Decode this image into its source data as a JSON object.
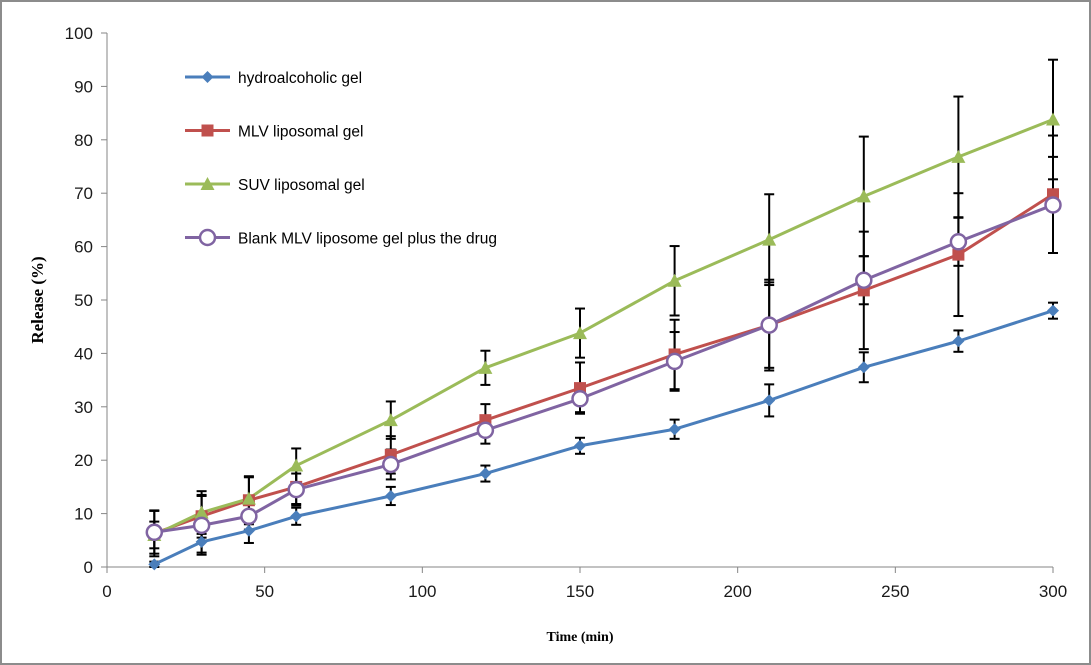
{
  "chart_data": {
    "type": "line",
    "title": "",
    "xlabel": "Time (min)",
    "ylabel": "Release (%)",
    "xlim": [
      0,
      300
    ],
    "ylim": [
      0,
      100
    ],
    "x_ticks": [
      0,
      50,
      100,
      150,
      200,
      250,
      300
    ],
    "y_ticks": [
      0,
      10,
      20,
      30,
      40,
      50,
      60,
      70,
      80,
      90,
      100
    ],
    "grid": false,
    "legend_position": "top-left",
    "x": [
      15,
      30,
      45,
      60,
      90,
      120,
      150,
      180,
      210,
      240,
      270,
      300
    ],
    "series": [
      {
        "name": "hydroalcoholic gel",
        "color": "#4a7ebb",
        "marker": "diamond",
        "values": [
          0.5,
          4.7,
          6.8,
          9.5,
          13.3,
          17.5,
          22.7,
          25.8,
          31.2,
          37.4,
          42.3,
          48.0
        ],
        "errors": [
          0.5,
          2.0,
          2.3,
          1.6,
          1.7,
          1.5,
          1.5,
          1.8,
          3.0,
          2.8,
          2.0,
          1.5
        ]
      },
      {
        "name": "MLV liposomal gel",
        "color": "#c0504d",
        "marker": "square",
        "values": [
          6.3,
          9.5,
          12.5,
          15.0,
          21.0,
          27.5,
          33.5,
          39.8,
          45.3,
          51.8,
          58.5,
          69.8
        ],
        "errors": [
          4.3,
          4.0,
          4.5,
          3.2,
          3.5,
          3.0,
          4.8,
          6.5,
          8.5,
          11.0,
          11.5,
          11.0
        ]
      },
      {
        "name": "SUV liposomal gel",
        "color": "#9bbb59",
        "marker": "triangle",
        "values": [
          6.0,
          10.2,
          12.8,
          19.0,
          27.5,
          37.3,
          43.8,
          53.6,
          61.3,
          69.4,
          76.8,
          83.8
        ],
        "errors": [
          2.5,
          4.0,
          4.0,
          3.2,
          3.5,
          3.2,
          4.6,
          6.5,
          8.5,
          11.2,
          11.3,
          11.2
        ]
      },
      {
        "name": "Blank MLV liposome gel plus the drug",
        "color": "#8064a2",
        "marker": "circle-open",
        "values": [
          6.5,
          7.8,
          9.5,
          14.5,
          19.2,
          25.6,
          31.5,
          38.5,
          45.3,
          53.7,
          60.9,
          67.8
        ],
        "errors": [
          4.0,
          5.5,
          2.5,
          3.0,
          2.8,
          2.5,
          2.5,
          5.5,
          8.0,
          4.5,
          4.5,
          9.0
        ]
      }
    ]
  }
}
